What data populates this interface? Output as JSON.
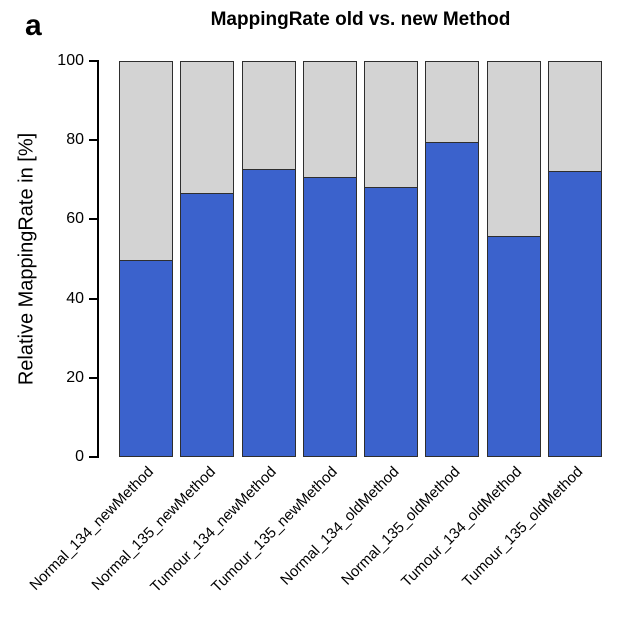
{
  "panel_label": "a",
  "chart_data": {
    "type": "bar",
    "stacked": true,
    "title": "MappingRate old vs. new Method",
    "xlabel": "",
    "ylabel": "Relative MappingRate in [%]",
    "ylim": [
      0,
      100
    ],
    "yticks": [
      0,
      20,
      40,
      60,
      80,
      100
    ],
    "grid": false,
    "legend": null,
    "x_tick_label_rotation_deg": 45,
    "categories": [
      "Normal_134_newMethod",
      "Normal_135_newMethod",
      "Tumour_134_newMethod",
      "Tumour_135_newMethod",
      "Normal_134_oldMethod",
      "Normal_135_oldMethod",
      "Tumour_134_oldMethod",
      "Tumour_135_oldMethod"
    ],
    "series": [
      {
        "name": "blue-lower-segment",
        "color": "#3b62cc",
        "values": [
          49.5,
          66.5,
          72.5,
          70.5,
          68,
          79.5,
          55.5,
          72
        ]
      },
      {
        "name": "gray-upper-segment",
        "color": "#d3d3d3",
        "values": [
          50.5,
          33.5,
          27.5,
          29.5,
          32,
          20.5,
          44.5,
          28
        ]
      }
    ],
    "colors": {
      "bar_blue": "#3b62cc",
      "bar_gray": "#d3d3d3",
      "bar_border": "#2e2e2e",
      "axis": "#000000",
      "background": "#ffffff"
    }
  }
}
